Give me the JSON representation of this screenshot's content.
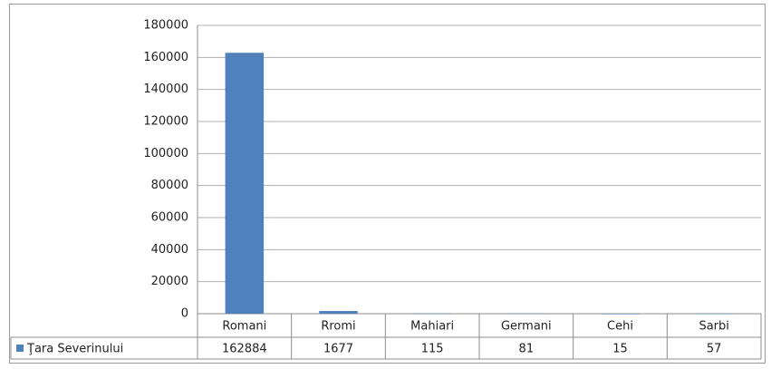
{
  "chart_data": {
    "type": "bar",
    "categories": [
      "Romani",
      "Rromi",
      "Mahiari",
      "Germani",
      "Cehi",
      "Sarbi"
    ],
    "series": [
      {
        "name": "Ţara Severinului",
        "color": "#4f81bd",
        "values": [
          162884,
          1677,
          115,
          81,
          15,
          57
        ]
      }
    ],
    "ylim": [
      0,
      180000
    ],
    "yticks": [
      0,
      20000,
      40000,
      60000,
      80000,
      100000,
      120000,
      140000,
      160000,
      180000
    ],
    "grid": true,
    "data_table": true
  }
}
